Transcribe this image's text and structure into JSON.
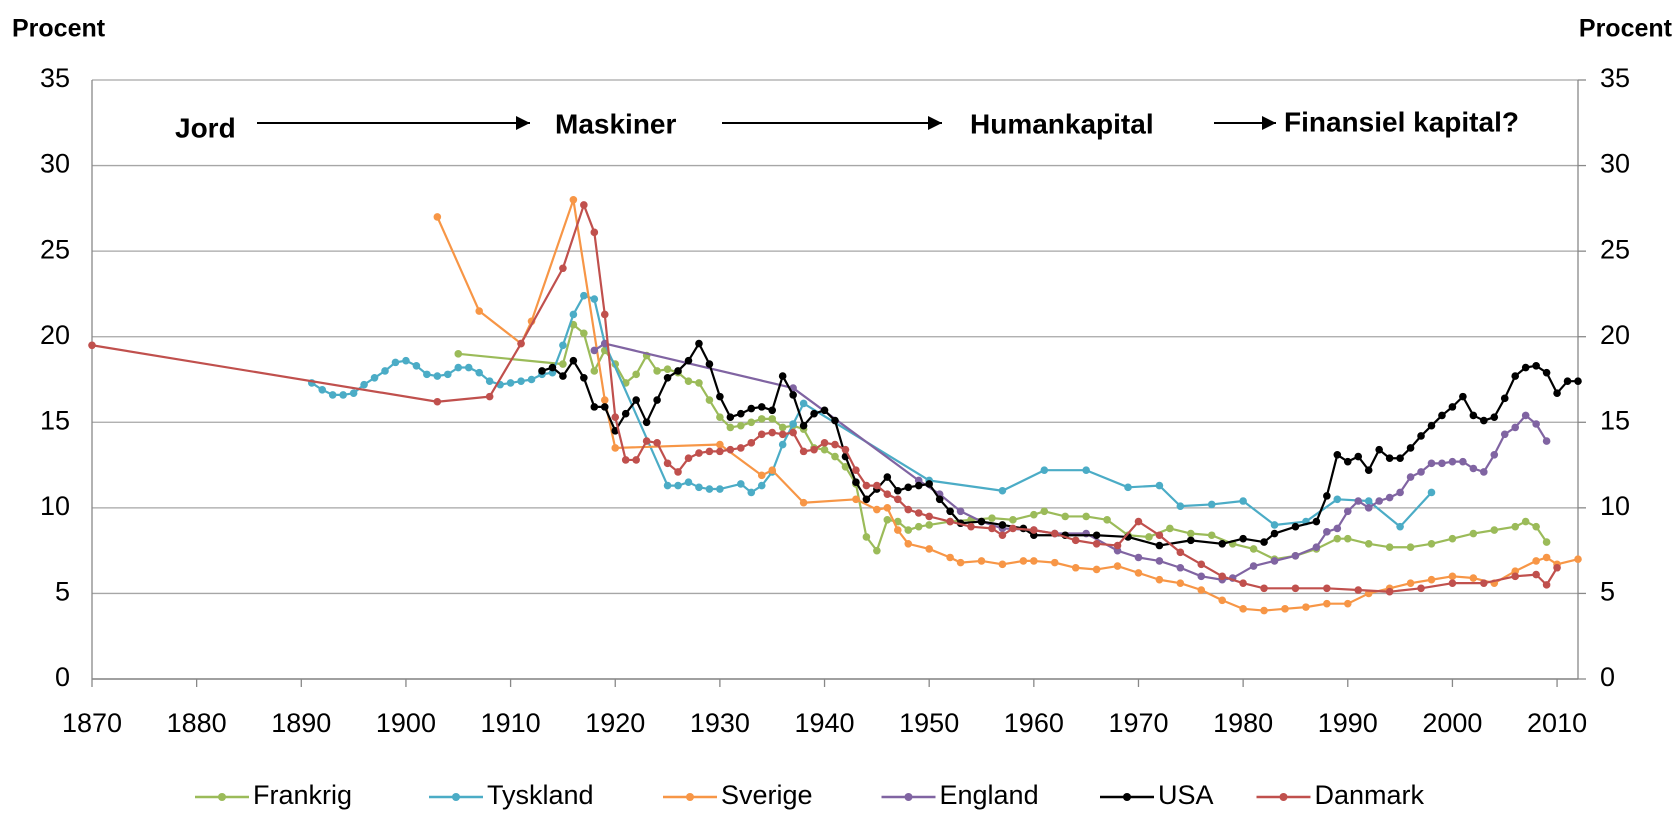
{
  "chart_data": {
    "type": "line",
    "ylabel": "Procent",
    "y2label": "Procent",
    "annotations": [
      "Jord",
      "Maskiner",
      "Humankapital",
      "Finansiel kapital?"
    ],
    "xlim": [
      1870,
      2012
    ],
    "xticks": [
      1870,
      1880,
      1890,
      1900,
      1910,
      1920,
      1930,
      1940,
      1950,
      1960,
      1970,
      1980,
      1990,
      2000,
      2010
    ],
    "ylim": [
      0,
      35
    ],
    "yticks": [
      0,
      5,
      10,
      15,
      20,
      25,
      30,
      35
    ],
    "y2lim": [
      0,
      35
    ],
    "y2ticks": [
      0,
      5,
      10,
      15,
      20,
      25,
      30,
      35
    ],
    "grid": true,
    "legend": "bottom",
    "series": [
      {
        "name": "Frankrig",
        "color": "#9bbb59",
        "x": [
          1905,
          1915,
          1916,
          1917,
          1918,
          1919,
          1920,
          1921,
          1922,
          1923,
          1924,
          1925,
          1926,
          1927,
          1928,
          1929,
          1930,
          1931,
          1932,
          1933,
          1934,
          1935,
          1936,
          1937,
          1938,
          1939,
          1940,
          1941,
          1942,
          1943,
          1944,
          1945,
          1946,
          1947,
          1948,
          1949,
          1950,
          1952,
          1954,
          1956,
          1958,
          1960,
          1961,
          1963,
          1965,
          1967,
          1969,
          1971,
          1973,
          1975,
          1977,
          1979,
          1981,
          1983,
          1985,
          1987,
          1989,
          1990,
          1992,
          1994,
          1996,
          1998,
          2000,
          2002,
          2004,
          2006,
          2007,
          2008,
          2009
        ],
        "values": [
          19.0,
          18.4,
          20.7,
          20.2,
          18.0,
          19.2,
          18.4,
          17.3,
          17.8,
          18.9,
          18.0,
          18.1,
          17.9,
          17.4,
          17.3,
          16.3,
          15.3,
          14.7,
          14.8,
          15.0,
          15.2,
          15.2,
          14.7,
          14.8,
          14.6,
          13.5,
          13.4,
          13.0,
          12.4,
          11.4,
          8.3,
          7.5,
          9.3,
          9.2,
          8.7,
          8.9,
          9.0,
          9.2,
          9.3,
          9.4,
          9.3,
          9.6,
          9.8,
          9.5,
          9.5,
          9.3,
          8.4,
          8.3,
          8.8,
          8.5,
          8.4,
          7.9,
          7.6,
          7.0,
          7.2,
          7.6,
          8.2,
          8.2,
          7.9,
          7.7,
          7.7,
          7.9,
          8.2,
          8.5,
          8.7,
          8.9,
          9.2,
          8.9,
          8.0
        ]
      },
      {
        "name": "Tyskland",
        "color": "#4bacc6",
        "x": [
          1891,
          1892,
          1893,
          1894,
          1895,
          1896,
          1897,
          1898,
          1899,
          1900,
          1901,
          1902,
          1903,
          1904,
          1905,
          1906,
          1907,
          1908,
          1909,
          1910,
          1911,
          1912,
          1913,
          1914,
          1915,
          1916,
          1917,
          1918,
          1919,
          1925,
          1926,
          1927,
          1928,
          1929,
          1930,
          1932,
          1933,
          1934,
          1935,
          1936,
          1937,
          1938,
          1950,
          1957,
          1961,
          1965,
          1969,
          1972,
          1974,
          1977,
          1980,
          1983,
          1986,
          1989,
          1992,
          1995,
          1998
        ],
        "values": [
          17.3,
          16.9,
          16.6,
          16.6,
          16.7,
          17.2,
          17.6,
          18.0,
          18.5,
          18.6,
          18.3,
          17.8,
          17.7,
          17.8,
          18.2,
          18.2,
          17.9,
          17.4,
          17.2,
          17.3,
          17.4,
          17.5,
          17.8,
          17.9,
          19.5,
          21.3,
          22.4,
          22.2,
          19.6,
          11.3,
          11.3,
          11.5,
          11.2,
          11.1,
          11.1,
          11.4,
          10.9,
          11.3,
          12.1,
          13.7,
          14.9,
          16.1,
          11.6,
          11.0,
          12.2,
          12.2,
          11.2,
          11.3,
          10.1,
          10.2,
          10.4,
          9.0,
          9.2,
          10.5,
          10.4,
          8.9,
          10.9
        ]
      },
      {
        "name": "Sverige",
        "color": "#f79646",
        "x": [
          1903,
          1907,
          1911,
          1912,
          1916,
          1919,
          1920,
          1930,
          1934,
          1935,
          1938,
          1943,
          1945,
          1946,
          1947,
          1948,
          1950,
          1952,
          1953,
          1955,
          1957,
          1959,
          1960,
          1962,
          1964,
          1966,
          1968,
          1970,
          1972,
          1974,
          1976,
          1978,
          1980,
          1982,
          1984,
          1986,
          1988,
          1990,
          1992,
          1994,
          1996,
          1998,
          2000,
          2002,
          2004,
          2006,
          2008,
          2009,
          2010,
          2012
        ],
        "values": [
          27.0,
          21.5,
          19.6,
          20.9,
          28.0,
          16.3,
          13.5,
          13.7,
          11.9,
          12.2,
          10.3,
          10.5,
          9.9,
          10.0,
          8.7,
          7.9,
          7.6,
          7.1,
          6.8,
          6.9,
          6.7,
          6.9,
          6.9,
          6.8,
          6.5,
          6.4,
          6.6,
          6.2,
          5.8,
          5.6,
          5.2,
          4.6,
          4.1,
          4.0,
          4.1,
          4.2,
          4.4,
          4.4,
          5.0,
          5.3,
          5.6,
          5.8,
          6.0,
          5.9,
          5.6,
          6.3,
          6.9,
          7.1,
          6.7,
          7.0
        ]
      },
      {
        "name": "England",
        "color": "#8064a2",
        "x": [
          1918,
          1919,
          1937,
          1949,
          1951,
          1953,
          1955,
          1957,
          1960,
          1962,
          1965,
          1968,
          1970,
          1972,
          1974,
          1976,
          1978,
          1979,
          1981,
          1983,
          1985,
          1987,
          1988,
          1989,
          1990,
          1991,
          1992,
          1993,
          1994,
          1995,
          1996,
          1997,
          1998,
          1999,
          2000,
          2001,
          2002,
          2003,
          2004,
          2005,
          2006,
          2007,
          2008,
          2009
        ],
        "values": [
          19.2,
          19.6,
          17.0,
          11.6,
          10.8,
          9.8,
          9.2,
          8.8,
          8.7,
          8.5,
          8.5,
          7.5,
          7.1,
          6.9,
          6.5,
          6.0,
          5.8,
          5.9,
          6.6,
          6.9,
          7.2,
          7.7,
          8.6,
          8.8,
          9.8,
          10.4,
          10.0,
          10.4,
          10.6,
          10.9,
          11.8,
          12.1,
          12.6,
          12.6,
          12.7,
          12.7,
          12.3,
          12.1,
          13.1,
          14.3,
          14.7,
          15.4,
          14.9,
          13.9
        ]
      },
      {
        "name": "USA",
        "color": "#000000",
        "x": [
          1913,
          1914,
          1915,
          1916,
          1917,
          1918,
          1919,
          1920,
          1921,
          1922,
          1923,
          1924,
          1925,
          1926,
          1927,
          1928,
          1929,
          1930,
          1931,
          1932,
          1933,
          1934,
          1935,
          1936,
          1937,
          1938,
          1939,
          1940,
          1941,
          1942,
          1943,
          1944,
          1945,
          1946,
          1947,
          1948,
          1949,
          1950,
          1951,
          1952,
          1953,
          1955,
          1957,
          1959,
          1960,
          1963,
          1966,
          1969,
          1972,
          1975,
          1978,
          1980,
          1982,
          1983,
          1985,
          1987,
          1988,
          1989,
          1990,
          1991,
          1992,
          1993,
          1994,
          1995,
          1996,
          1997,
          1998,
          1999,
          2000,
          2001,
          2002,
          2003,
          2004,
          2005,
          2006,
          2007,
          2008,
          2009,
          2010,
          2011,
          2012
        ],
        "values": [
          18.0,
          18.2,
          17.7,
          18.6,
          17.6,
          15.9,
          15.9,
          14.5,
          15.5,
          16.3,
          15.0,
          16.3,
          17.6,
          18.0,
          18.6,
          19.6,
          18.4,
          16.5,
          15.3,
          15.5,
          15.8,
          15.9,
          15.7,
          17.7,
          16.6,
          14.8,
          15.5,
          15.7,
          15.1,
          13.0,
          11.5,
          10.5,
          11.1,
          11.8,
          11.0,
          11.2,
          11.3,
          11.4,
          10.5,
          9.8,
          9.1,
          9.2,
          9.0,
          8.8,
          8.4,
          8.4,
          8.4,
          8.3,
          7.8,
          8.1,
          7.9,
          8.2,
          8.0,
          8.5,
          8.9,
          9.2,
          10.7,
          13.1,
          12.7,
          13.0,
          12.2,
          13.4,
          12.9,
          12.9,
          13.5,
          14.2,
          14.8,
          15.4,
          15.9,
          16.5,
          15.4,
          15.1,
          15.3,
          16.4,
          17.7,
          18.2,
          18.3,
          17.9,
          16.7,
          17.4,
          17.4
        ]
      },
      {
        "name": "Danmark",
        "color": "#c0504d",
        "x": [
          1870,
          1903,
          1908,
          1911,
          1915,
          1917,
          1918,
          1919,
          1920,
          1921,
          1922,
          1923,
          1924,
          1925,
          1926,
          1927,
          1928,
          1929,
          1930,
          1931,
          1932,
          1933,
          1934,
          1935,
          1936,
          1937,
          1938,
          1939,
          1940,
          1941,
          1942,
          1943,
          1944,
          1945,
          1946,
          1947,
          1948,
          1949,
          1950,
          1952,
          1954,
          1956,
          1957,
          1958,
          1960,
          1962,
          1964,
          1966,
          1968,
          1970,
          1972,
          1974,
          1976,
          1978,
          1980,
          1982,
          1985,
          1988,
          1991,
          1994,
          1997,
          2000,
          2003,
          2006,
          2008,
          2009,
          2010
        ],
        "values": [
          19.5,
          16.2,
          16.5,
          19.6,
          24.0,
          27.7,
          26.1,
          21.3,
          15.3,
          12.8,
          12.8,
          13.9,
          13.8,
          12.6,
          12.1,
          12.9,
          13.2,
          13.3,
          13.3,
          13.4,
          13.5,
          13.8,
          14.3,
          14.4,
          14.3,
          14.4,
          13.3,
          13.4,
          13.8,
          13.7,
          13.4,
          12.2,
          11.3,
          11.3,
          10.8,
          10.5,
          9.9,
          9.7,
          9.5,
          9.2,
          8.9,
          8.8,
          8.4,
          8.8,
          8.7,
          8.5,
          8.1,
          7.9,
          7.8,
          9.2,
          8.4,
          7.4,
          6.7,
          6.0,
          5.6,
          5.3,
          5.3,
          5.3,
          5.2,
          5.1,
          5.3,
          5.6,
          5.6,
          6.0,
          6.1,
          5.5,
          6.5
        ]
      }
    ]
  }
}
